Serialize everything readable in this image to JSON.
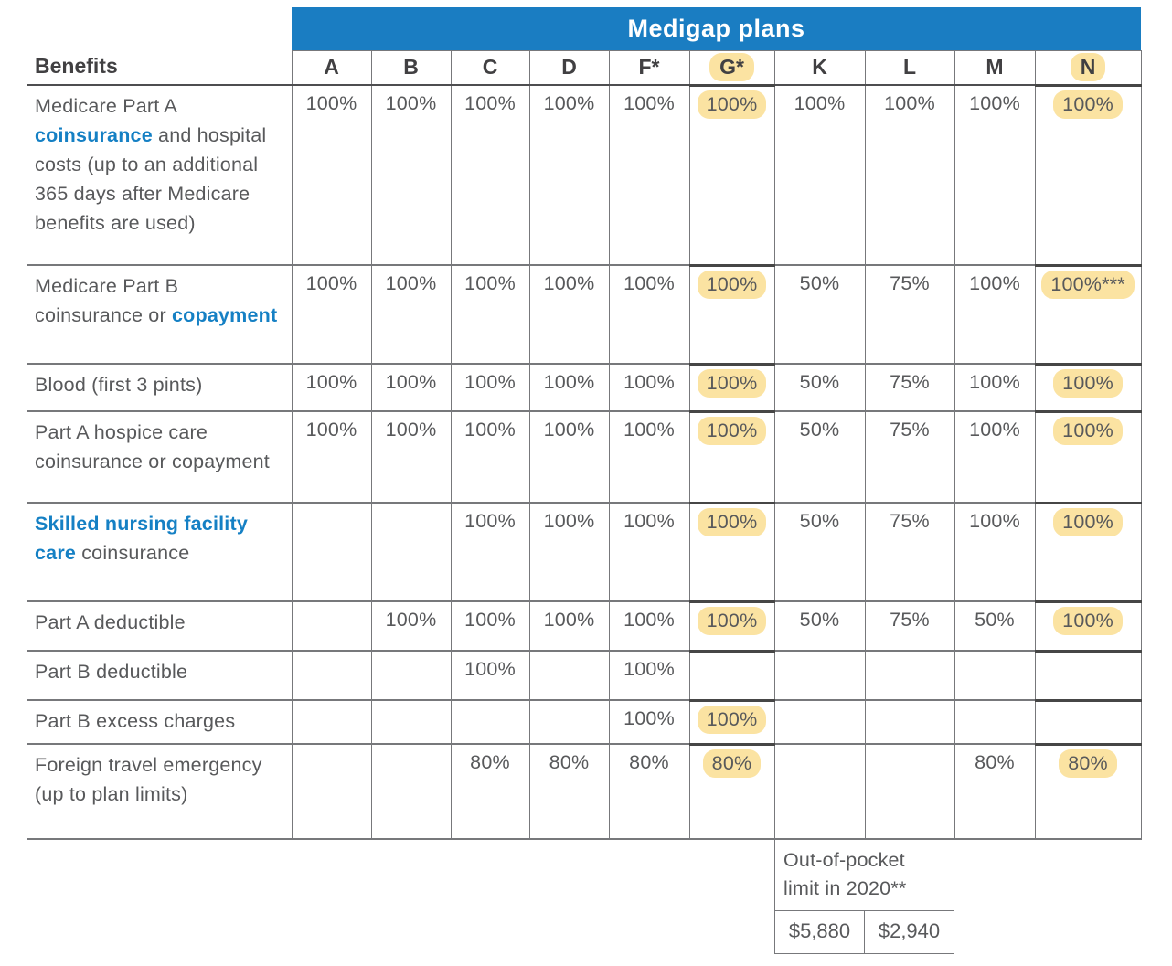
{
  "banner": {
    "title": "Medigap plans"
  },
  "colors": {
    "banner_blue": "#1A7DC2",
    "link_blue": "#1580C4",
    "highlight_yellow": "#FBE3A2",
    "body_text": "#58595B",
    "heading_text": "#414042",
    "grid_border": "#77787B",
    "emphasis_border": "#464646",
    "header_underline": "#4E4E50"
  },
  "table": {
    "benefits_header": "Benefits",
    "plan_columns": [
      {
        "id": "A",
        "label": "A",
        "highlighted": false
      },
      {
        "id": "B",
        "label": "B",
        "highlighted": false
      },
      {
        "id": "C",
        "label": "C",
        "highlighted": false
      },
      {
        "id": "D",
        "label": "D",
        "highlighted": false
      },
      {
        "id": "F",
        "label": "F*",
        "highlighted": false
      },
      {
        "id": "G",
        "label": "G*",
        "highlighted": true
      },
      {
        "id": "K",
        "label": "K",
        "highlighted": false
      },
      {
        "id": "L",
        "label": "L",
        "highlighted": false
      },
      {
        "id": "M",
        "label": "M",
        "highlighted": false
      },
      {
        "id": "N",
        "label": "N",
        "highlighted": true
      }
    ],
    "rows": [
      {
        "benefit": [
          {
            "text": "Medicare Part A ",
            "link": false
          },
          {
            "text": "coinsurance",
            "link": true
          },
          {
            "text": " and hospital costs (up to an additional 365 days after Medicare benefits are used)",
            "link": false
          }
        ],
        "values": [
          "100%",
          "100%",
          "100%",
          "100%",
          "100%",
          "100%",
          "100%",
          "100%",
          "100%",
          "100%"
        ]
      },
      {
        "benefit": [
          {
            "text": "Medicare Part B coinsurance or ",
            "link": false
          },
          {
            "text": "copayment",
            "link": true
          }
        ],
        "values": [
          "100%",
          "100%",
          "100%",
          "100%",
          "100%",
          "100%",
          "50%",
          "75%",
          "100%",
          "100%***"
        ]
      },
      {
        "benefit": [
          {
            "text": "Blood (first 3 pints)",
            "link": false
          }
        ],
        "values": [
          "100%",
          "100%",
          "100%",
          "100%",
          "100%",
          "100%",
          "50%",
          "75%",
          "100%",
          "100%"
        ]
      },
      {
        "benefit": [
          {
            "text": "Part A hospice care coinsurance or copayment",
            "link": false
          }
        ],
        "values": [
          "100%",
          "100%",
          "100%",
          "100%",
          "100%",
          "100%",
          "50%",
          "75%",
          "100%",
          "100%"
        ]
      },
      {
        "benefit": [
          {
            "text": "Skilled nursing facility care",
            "link": true
          },
          {
            "text": " coinsurance",
            "link": false
          }
        ],
        "values": [
          "",
          "",
          "100%",
          "100%",
          "100%",
          "100%",
          "50%",
          "75%",
          "100%",
          "100%"
        ]
      },
      {
        "benefit": [
          {
            "text": "Part A deductible",
            "link": false
          }
        ],
        "values": [
          "",
          "100%",
          "100%",
          "100%",
          "100%",
          "100%",
          "50%",
          "75%",
          "50%",
          "100%"
        ]
      },
      {
        "benefit": [
          {
            "text": "Part B deductible",
            "link": false
          }
        ],
        "values": [
          "",
          "",
          "100%",
          "",
          "100%",
          "",
          "",
          "",
          "",
          ""
        ]
      },
      {
        "benefit": [
          {
            "text": "Part B excess charges",
            "link": false
          }
        ],
        "values": [
          "",
          "",
          "",
          "",
          "100%",
          "100%",
          "",
          "",
          "",
          ""
        ]
      },
      {
        "benefit": [
          {
            "text": "Foreign travel emergency (up to plan limits)",
            "link": false
          }
        ],
        "values": [
          "",
          "",
          "80%",
          "80%",
          "80%",
          "80%",
          "",
          "",
          "80%",
          "80%"
        ]
      }
    ]
  },
  "footer": {
    "out_of_pocket_label": "Out-of-pocket limit in 2020**",
    "values": [
      "$5,880",
      "$2,940"
    ]
  }
}
